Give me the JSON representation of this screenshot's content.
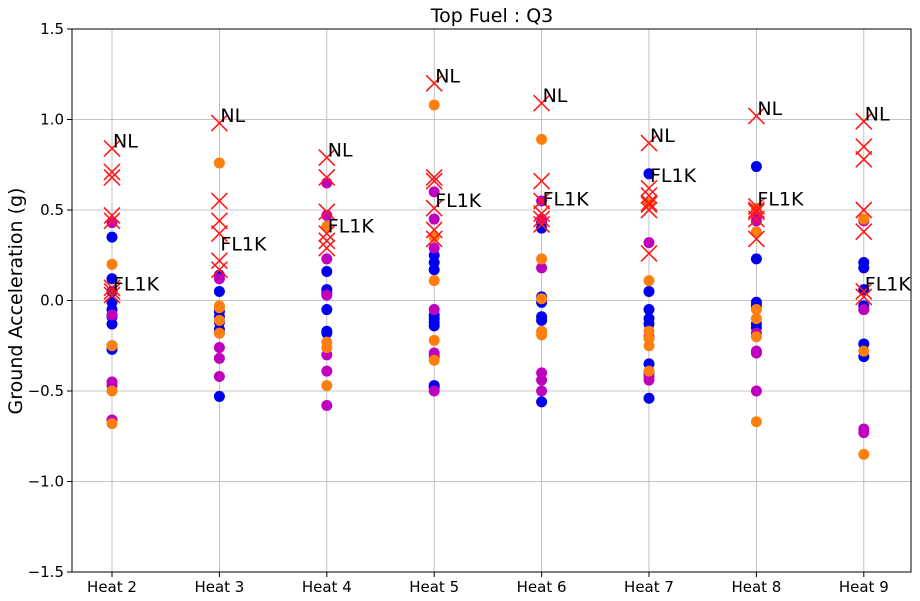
{
  "chart_data": {
    "type": "scatter",
    "title": "Top Fuel  : Q3",
    "xlabel": "",
    "ylabel": "Ground Acceleration (g)",
    "ylim": [
      -1.5,
      1.5
    ],
    "yticks": [
      -1.5,
      -1.0,
      -0.5,
      0.0,
      0.5,
      1.0,
      1.5
    ],
    "ytick_labels": [
      "−1.5",
      "−1.0",
      "−0.5",
      "0.0",
      "0.5",
      "1.0",
      "1.5"
    ],
    "categories": [
      "Heat 2",
      "Heat 3",
      "Heat 4",
      "Heat 5",
      "Heat 6",
      "Heat 7",
      "Heat 8",
      "Heat 9"
    ],
    "grid": true,
    "colors": {
      "blue": "#0000ee",
      "magenta": "#bf00bf",
      "orange": "#ff7f0e",
      "red_x": "#ff1a1a"
    },
    "series": [
      {
        "color_key": "blue",
        "marker": "circle",
        "points": [
          [
            0,
            0.35
          ],
          [
            0,
            0.12
          ],
          [
            0,
            0.05
          ],
          [
            0,
            -0.01
          ],
          [
            0,
            -0.05
          ],
          [
            0,
            -0.09
          ],
          [
            0,
            -0.13
          ],
          [
            0,
            -0.25
          ],
          [
            0,
            -0.27
          ],
          [
            1,
            0.14
          ],
          [
            1,
            0.05
          ],
          [
            1,
            -0.06
          ],
          [
            1,
            -0.09
          ],
          [
            1,
            -0.12
          ],
          [
            1,
            -0.16
          ],
          [
            1,
            -0.18
          ],
          [
            1,
            -0.53
          ],
          [
            2,
            0.16
          ],
          [
            2,
            0.06
          ],
          [
            2,
            0.04
          ],
          [
            2,
            -0.05
          ],
          [
            2,
            -0.17
          ],
          [
            2,
            -0.18
          ],
          [
            3,
            0.25
          ],
          [
            3,
            0.21
          ],
          [
            3,
            0.17
          ],
          [
            3,
            -0.08
          ],
          [
            3,
            -0.1
          ],
          [
            3,
            -0.12
          ],
          [
            3,
            -0.14
          ],
          [
            3,
            -0.47
          ],
          [
            3,
            -0.48
          ],
          [
            4,
            0.43
          ],
          [
            4,
            0.4
          ],
          [
            4,
            0.02
          ],
          [
            4,
            -0.01
          ],
          [
            4,
            -0.09
          ],
          [
            4,
            -0.11
          ],
          [
            4,
            -0.56
          ],
          [
            5,
            0.7
          ],
          [
            5,
            0.05
          ],
          [
            5,
            -0.05
          ],
          [
            5,
            -0.1
          ],
          [
            5,
            -0.13
          ],
          [
            5,
            -0.35
          ],
          [
            5,
            -0.4
          ],
          [
            5,
            -0.54
          ],
          [
            6,
            0.74
          ],
          [
            6,
            0.23
          ],
          [
            6,
            -0.01
          ],
          [
            6,
            -0.03
          ],
          [
            6,
            -0.13
          ],
          [
            6,
            -0.15
          ],
          [
            7,
            0.21
          ],
          [
            7,
            0.18
          ],
          [
            7,
            0.06
          ],
          [
            7,
            -0.03
          ],
          [
            7,
            -0.05
          ],
          [
            7,
            -0.24
          ],
          [
            7,
            -0.31
          ]
        ]
      },
      {
        "color_key": "magenta",
        "marker": "circle",
        "points": [
          [
            0,
            0.43
          ],
          [
            0,
            -0.08
          ],
          [
            0,
            -0.45
          ],
          [
            0,
            -0.47
          ],
          [
            0,
            -0.66
          ],
          [
            1,
            0.12
          ],
          [
            1,
            -0.26
          ],
          [
            1,
            -0.32
          ],
          [
            1,
            -0.42
          ],
          [
            2,
            0.65
          ],
          [
            2,
            0.47
          ],
          [
            2,
            0.23
          ],
          [
            2,
            0.03
          ],
          [
            2,
            -0.3
          ],
          [
            2,
            -0.39
          ],
          [
            2,
            -0.58
          ],
          [
            3,
            0.6
          ],
          [
            3,
            0.45
          ],
          [
            3,
            0.29
          ],
          [
            3,
            -0.05
          ],
          [
            3,
            -0.29
          ],
          [
            3,
            -0.31
          ],
          [
            3,
            -0.5
          ],
          [
            4,
            0.55
          ],
          [
            4,
            0.45
          ],
          [
            4,
            0.18
          ],
          [
            4,
            -0.4
          ],
          [
            4,
            -0.44
          ],
          [
            4,
            -0.5
          ],
          [
            5,
            0.32
          ],
          [
            5,
            -0.2
          ],
          [
            5,
            -0.42
          ],
          [
            5,
            -0.44
          ],
          [
            6,
            0.47
          ],
          [
            6,
            0.44
          ],
          [
            6,
            -0.18
          ],
          [
            6,
            -0.28
          ],
          [
            6,
            -0.29
          ],
          [
            6,
            -0.5
          ],
          [
            7,
            0.44
          ],
          [
            7,
            -0.05
          ],
          [
            7,
            -0.71
          ],
          [
            7,
            -0.73
          ]
        ]
      },
      {
        "color_key": "orange",
        "marker": "circle",
        "points": [
          [
            0,
            0.2
          ],
          [
            0,
            -0.25
          ],
          [
            0,
            -0.5
          ],
          [
            0,
            -0.68
          ],
          [
            1,
            0.76
          ],
          [
            1,
            -0.03
          ],
          [
            1,
            -0.04
          ],
          [
            1,
            -0.11
          ],
          [
            1,
            -0.18
          ],
          [
            2,
            0.41
          ],
          [
            2,
            -0.23
          ],
          [
            2,
            -0.26
          ],
          [
            2,
            -0.47
          ],
          [
            3,
            1.08
          ],
          [
            3,
            0.35
          ],
          [
            3,
            0.11
          ],
          [
            3,
            -0.22
          ],
          [
            3,
            -0.33
          ],
          [
            4,
            0.89
          ],
          [
            4,
            0.23
          ],
          [
            4,
            0.01
          ],
          [
            4,
            -0.17
          ],
          [
            4,
            -0.19
          ],
          [
            5,
            0.54
          ],
          [
            5,
            0.11
          ],
          [
            5,
            -0.17
          ],
          [
            5,
            -0.21
          ],
          [
            5,
            -0.25
          ],
          [
            5,
            -0.39
          ],
          [
            6,
            0.51
          ],
          [
            6,
            0.38
          ],
          [
            6,
            -0.05
          ],
          [
            6,
            -0.1
          ],
          [
            6,
            -0.2
          ],
          [
            6,
            -0.67
          ],
          [
            7,
            0.45
          ],
          [
            7,
            -0.28
          ],
          [
            7,
            -0.85
          ]
        ]
      },
      {
        "color_key": "red_x",
        "marker": "x",
        "points": [
          [
            0,
            0.84
          ],
          [
            0,
            0.71
          ],
          [
            0,
            0.68
          ],
          [
            0,
            0.47
          ],
          [
            0,
            0.44
          ],
          [
            0,
            0.07
          ],
          [
            0,
            0.05
          ],
          [
            0,
            0.03
          ],
          [
            1,
            0.98
          ],
          [
            1,
            0.55
          ],
          [
            1,
            0.44
          ],
          [
            1,
            0.37
          ],
          [
            1,
            0.22
          ],
          [
            1,
            0.17
          ],
          [
            2,
            0.79
          ],
          [
            2,
            0.68
          ],
          [
            2,
            0.49
          ],
          [
            2,
            0.37
          ],
          [
            2,
            0.33
          ],
          [
            2,
            0.29
          ],
          [
            3,
            1.2
          ],
          [
            3,
            0.68
          ],
          [
            3,
            0.66
          ],
          [
            3,
            0.51
          ],
          [
            3,
            0.39
          ],
          [
            3,
            0.34
          ],
          [
            4,
            1.09
          ],
          [
            4,
            0.66
          ],
          [
            4,
            0.55
          ],
          [
            4,
            0.48
          ],
          [
            4,
            0.45
          ],
          [
            4,
            0.42
          ],
          [
            5,
            0.87
          ],
          [
            5,
            0.62
          ],
          [
            5,
            0.58
          ],
          [
            5,
            0.54
          ],
          [
            5,
            0.53
          ],
          [
            5,
            0.5
          ],
          [
            5,
            0.26
          ],
          [
            6,
            1.02
          ],
          [
            6,
            0.52
          ],
          [
            6,
            0.5
          ],
          [
            6,
            0.49
          ],
          [
            6,
            0.45
          ],
          [
            6,
            0.34
          ],
          [
            7,
            0.99
          ],
          [
            7,
            0.85
          ],
          [
            7,
            0.78
          ],
          [
            7,
            0.5
          ],
          [
            7,
            0.38
          ],
          [
            7,
            0.05
          ],
          [
            7,
            0.02
          ]
        ]
      }
    ],
    "annotations": [
      {
        "text": "NL",
        "category": 0,
        "y": 0.84
      },
      {
        "text": "FL1K",
        "category": 0,
        "y": 0.05
      },
      {
        "text": "NL",
        "category": 1,
        "y": 0.98
      },
      {
        "text": "FL1K",
        "category": 1,
        "y": 0.27
      },
      {
        "text": "NL",
        "category": 2,
        "y": 0.79
      },
      {
        "text": "FL1K",
        "category": 2,
        "y": 0.37
      },
      {
        "text": "NL",
        "category": 3,
        "y": 1.2
      },
      {
        "text": "FL1K",
        "category": 3,
        "y": 0.51
      },
      {
        "text": "NL",
        "category": 4,
        "y": 1.09
      },
      {
        "text": "FL1K",
        "category": 4,
        "y": 0.52
      },
      {
        "text": "NL",
        "category": 5,
        "y": 0.87
      },
      {
        "text": "FL1K",
        "category": 5,
        "y": 0.65
      },
      {
        "text": "NL",
        "category": 6,
        "y": 1.02
      },
      {
        "text": "FL1K",
        "category": 6,
        "y": 0.52
      },
      {
        "text": "NL",
        "category": 7,
        "y": 0.99
      },
      {
        "text": "FL1K",
        "category": 7,
        "y": 0.05
      }
    ]
  }
}
